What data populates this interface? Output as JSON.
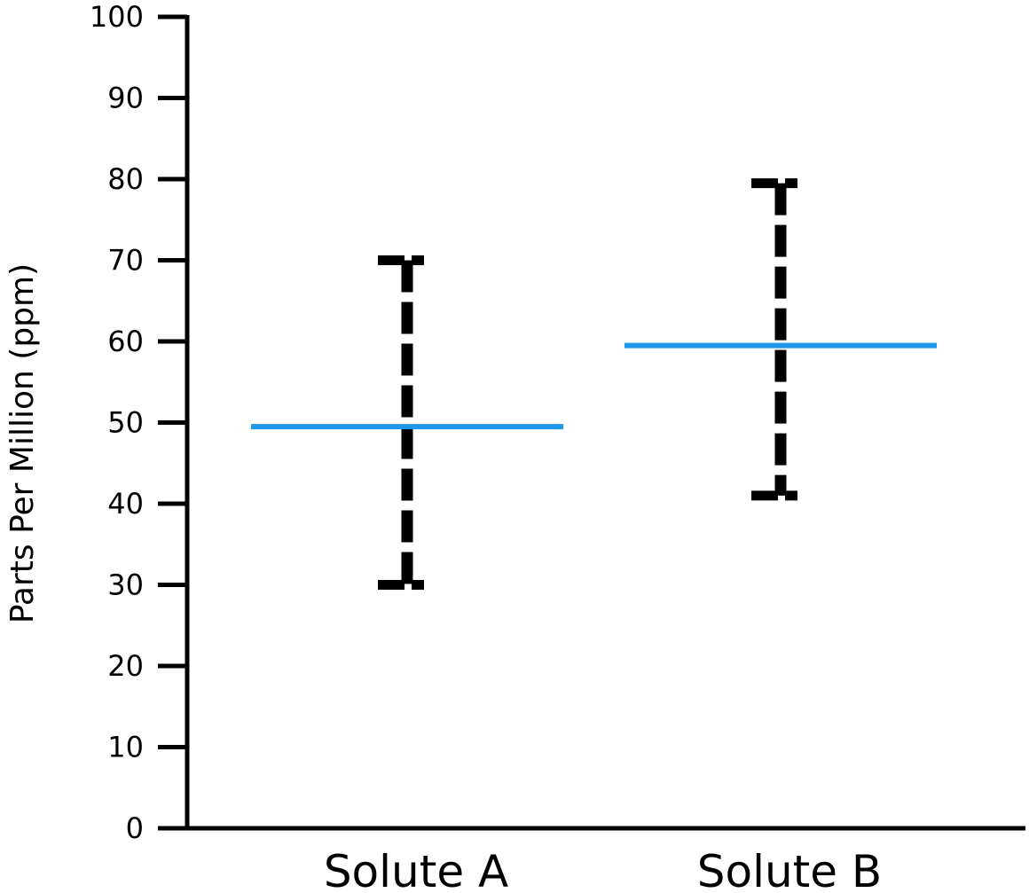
{
  "chart_data": {
    "type": "error-bar",
    "title": "",
    "xlabel": "",
    "ylabel": "Parts Per Million (ppm)",
    "ylim": [
      0,
      100
    ],
    "yticks": [
      "0",
      "10",
      "20",
      "30",
      "40",
      "50",
      "60",
      "70",
      "80",
      "90",
      "100"
    ],
    "grid": false,
    "legend": "none",
    "categories": [
      "Solute A",
      "Solute B"
    ],
    "series": [
      {
        "mean": 49.5,
        "low": 30,
        "high": 70
      },
      {
        "mean": 59.5,
        "low": 41,
        "high": 79.5
      }
    ],
    "colors": {
      "mean_line": "#1e96ea",
      "error_bar": "#000000",
      "axis": "#000000"
    }
  }
}
